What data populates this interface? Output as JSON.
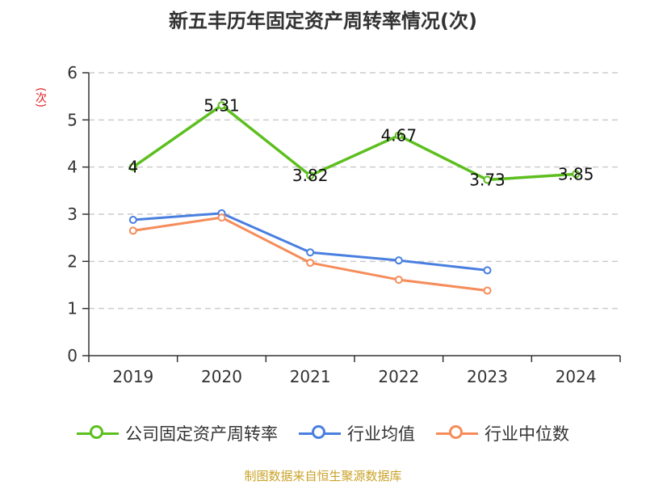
{
  "title": "新五丰历年固定资产周转率情况(次)",
  "source_note": "制图数据来自恒生聚源数据库",
  "chart_data": {
    "type": "line",
    "title": "新五丰历年固定资产周转率情况(次)",
    "ylabel": "(次)",
    "xlabel": "",
    "categories": [
      "2019",
      "2020",
      "2021",
      "2022",
      "2023",
      "2024"
    ],
    "ylim": [
      0,
      6
    ],
    "yticks": [
      "0",
      "1",
      "2",
      "3",
      "4",
      "5",
      "6"
    ],
    "grid": true,
    "legend_position": "bottom",
    "series": [
      {
        "name": "公司固定资产周转率",
        "color": "#5dbf1f",
        "values": [
          4,
          5.31,
          3.82,
          4.67,
          3.73,
          3.85
        ],
        "labels": [
          "4",
          "5.31",
          "3.82",
          "4.67",
          "3.73",
          "3.85"
        ],
        "show_labels": true
      },
      {
        "name": "行业均值",
        "color": "#4a7fe0",
        "values": [
          2.88,
          3.02,
          2.19,
          2.02,
          1.81,
          null
        ],
        "show_labels": false
      },
      {
        "name": "行业中位数",
        "color": "#f58c5a",
        "values": [
          2.65,
          2.93,
          1.97,
          1.61,
          1.38,
          null
        ],
        "show_labels": false
      }
    ]
  }
}
